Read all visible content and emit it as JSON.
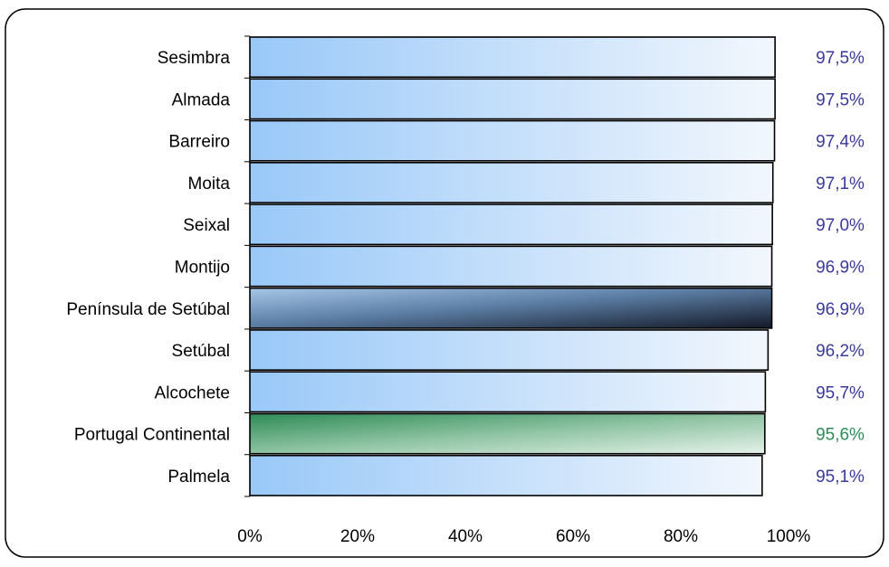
{
  "chart_data": {
    "type": "bar",
    "orientation": "horizontal",
    "categories": [
      "Sesimbra",
      "Almada",
      "Barreiro",
      "Moita",
      "Seixal",
      "Montijo",
      "Península de Setúbal",
      "Setúbal",
      "Alcochete",
      "Portugal Continental",
      "Palmela"
    ],
    "values": [
      97.5,
      97.5,
      97.4,
      97.1,
      97.0,
      96.9,
      96.9,
      96.2,
      95.7,
      95.6,
      95.1
    ],
    "value_labels": [
      "97,5%",
      "97,5%",
      "97,4%",
      "97,1%",
      "97,0%",
      "96,9%",
      "96,9%",
      "96,2%",
      "95,7%",
      "95,6%",
      "95,1%"
    ],
    "bar_styles": [
      "blue",
      "blue",
      "blue",
      "blue",
      "blue",
      "blue",
      "dark",
      "blue",
      "blue",
      "green",
      "blue"
    ],
    "xlim": [
      0,
      100
    ],
    "x_ticks": [
      0,
      20,
      40,
      60,
      80,
      100
    ],
    "x_tick_labels": [
      "0%",
      "20%",
      "40%",
      "60%",
      "80%",
      "100%"
    ],
    "grid": false,
    "legend": "none",
    "colors": {
      "label_blue": "#3a3a9a",
      "label_green": "#2e8b57",
      "bar_blue_start": "#99c8f8",
      "bar_blue_end": "#f2f7fd",
      "bar_dark_start": "#8fb3d9",
      "bar_dark_end": "#1a2030",
      "bar_green_start": "#2e8b57",
      "bar_green_end": "#e0eee4"
    }
  }
}
